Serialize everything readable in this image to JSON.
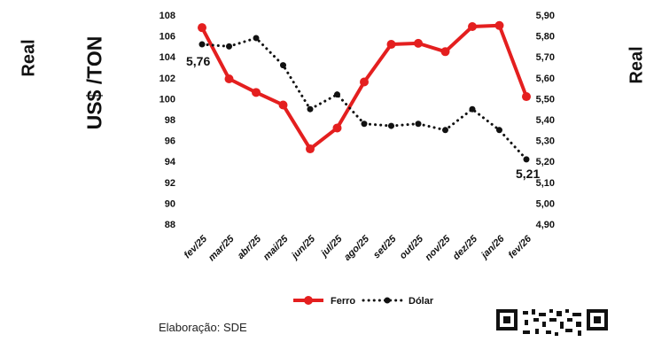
{
  "chart_data": {
    "type": "line",
    "categories": [
      "fev/25",
      "mar/25",
      "abr/25",
      "mai/25",
      "jun/25",
      "jul/25",
      "ago/25",
      "set/25",
      "out/25",
      "nov/25",
      "dez/25",
      "jan/26",
      "fev/26"
    ],
    "series": [
      {
        "name": "Ferro",
        "axis": "left",
        "color": "#e41f1f",
        "style": "solid",
        "values": [
          106.8,
          101.9,
          100.6,
          99.4,
          95.2,
          97.2,
          101.6,
          105.2,
          105.3,
          104.5,
          106.9,
          107.0,
          100.2
        ]
      },
      {
        "name": "Dólar",
        "axis": "right",
        "color": "#111111",
        "style": "dotted",
        "values": [
          5.76,
          5.75,
          5.79,
          5.66,
          5.45,
          5.52,
          5.38,
          5.37,
          5.38,
          5.35,
          5.45,
          5.35,
          5.21
        ]
      }
    ],
    "y_left": {
      "label": "US$ /TON",
      "ylim": [
        88,
        108
      ],
      "ticks": [
        "88",
        "90",
        "92",
        "94",
        "96",
        "98",
        "100",
        "102",
        "104",
        "106",
        "108"
      ]
    },
    "y_right": {
      "label": "Real",
      "ylim": [
        4.9,
        5.9
      ],
      "ticks": [
        "4,90",
        "5,00",
        "5,10",
        "5,20",
        "5,30",
        "5,40",
        "5,50",
        "5,60",
        "5,70",
        "5,80",
        "5,90"
      ]
    },
    "side_label_left": "Real",
    "annotations": [
      {
        "series": "Dólar",
        "index": 0,
        "text": "5,76"
      },
      {
        "series": "Dólar",
        "index": 12,
        "text": "5,21"
      }
    ],
    "legend": {
      "position": "bottom",
      "items": [
        "Ferro",
        "Dólar"
      ]
    },
    "grid": false
  },
  "footer": {
    "text": "Elaboração: SDE"
  },
  "qr": {
    "icon": "qr-code-icon"
  }
}
